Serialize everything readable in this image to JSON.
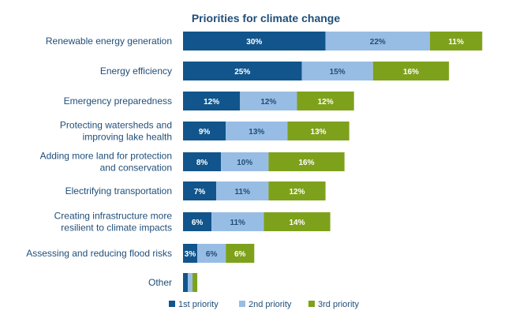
{
  "chart_data": {
    "type": "bar",
    "orientation": "horizontal",
    "stacked": true,
    "title": "Priorities for climate change",
    "categories": [
      "Renewable energy generation",
      "Energy efficiency",
      "Emergency preparedness",
      "Protecting watersheds and improving lake health",
      "Adding more land for protection and conservation",
      "Electrifying transportation",
      "Creating infrastructure more resilient to climate impacts",
      "Assessing and reducing flood risks",
      "Other"
    ],
    "series": [
      {
        "name": "1st priority",
        "color": "#11558c",
        "label_color": "#ffffff",
        "values": [
          30,
          25,
          12,
          9,
          8,
          7,
          6,
          3,
          1
        ],
        "labels": [
          "30%",
          "25%",
          "12%",
          "9%",
          "8%",
          "7%",
          "6%",
          "3%",
          ""
        ]
      },
      {
        "name": "2nd priority",
        "color": "#98bde4",
        "label_color": "#1f4e79",
        "values": [
          22,
          15,
          12,
          13,
          10,
          11,
          11,
          6,
          1
        ],
        "labels": [
          "22%",
          "15%",
          "12%",
          "13%",
          "10%",
          "11%",
          "11%",
          "6%",
          ""
        ]
      },
      {
        "name": "3rd priority",
        "color": "#7ea11c",
        "label_color": "#ffffff",
        "values": [
          11,
          16,
          12,
          13,
          16,
          12,
          14,
          6,
          1
        ],
        "labels": [
          "11%",
          "16%",
          "12%",
          "13%",
          "16%",
          "12%",
          "14%",
          "6%",
          ""
        ]
      }
    ],
    "legend_position": "bottom",
    "grid": false
  }
}
